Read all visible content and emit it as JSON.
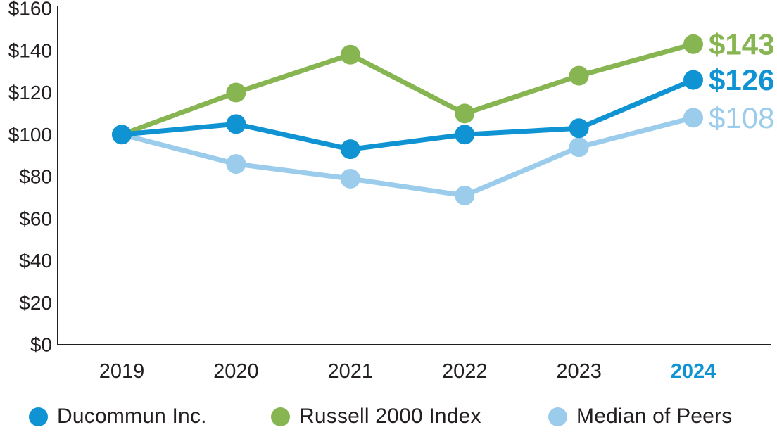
{
  "chart_data": {
    "type": "line",
    "x_labels": [
      "2019",
      "2020",
      "2021",
      "2022",
      "2023",
      "2024"
    ],
    "highlighted_x_label": "2024",
    "y_tick_labels": [
      "$0",
      "$20",
      "$40",
      "$60",
      "$80",
      "$100",
      "$120",
      "$140",
      "$160"
    ],
    "y_tick_values": [
      0,
      20,
      40,
      60,
      80,
      100,
      120,
      140,
      160
    ],
    "ylim": [
      0,
      160
    ],
    "grid": false,
    "legend_position": "bottom",
    "axis_color": "#231F20",
    "tick_label_color": "#231F20",
    "highlight_color": "#0F93D2",
    "series": [
      {
        "name": "Ducommun Inc.",
        "color": "#0F93D2",
        "values": [
          100,
          105,
          93,
          100,
          103,
          126
        ],
        "end_label": "$126",
        "end_label_weight": "bold"
      },
      {
        "name": "Russell 2000 Index",
        "color": "#86B551",
        "values": [
          100,
          120,
          138,
          110,
          128,
          143
        ],
        "end_label": "$143",
        "end_label_weight": "bold"
      },
      {
        "name": "Median of Peers",
        "color": "#9BCCEB",
        "values": [
          100,
          86,
          79,
          71,
          94,
          108
        ],
        "end_label": "$108",
        "end_label_weight": "normal"
      }
    ]
  }
}
